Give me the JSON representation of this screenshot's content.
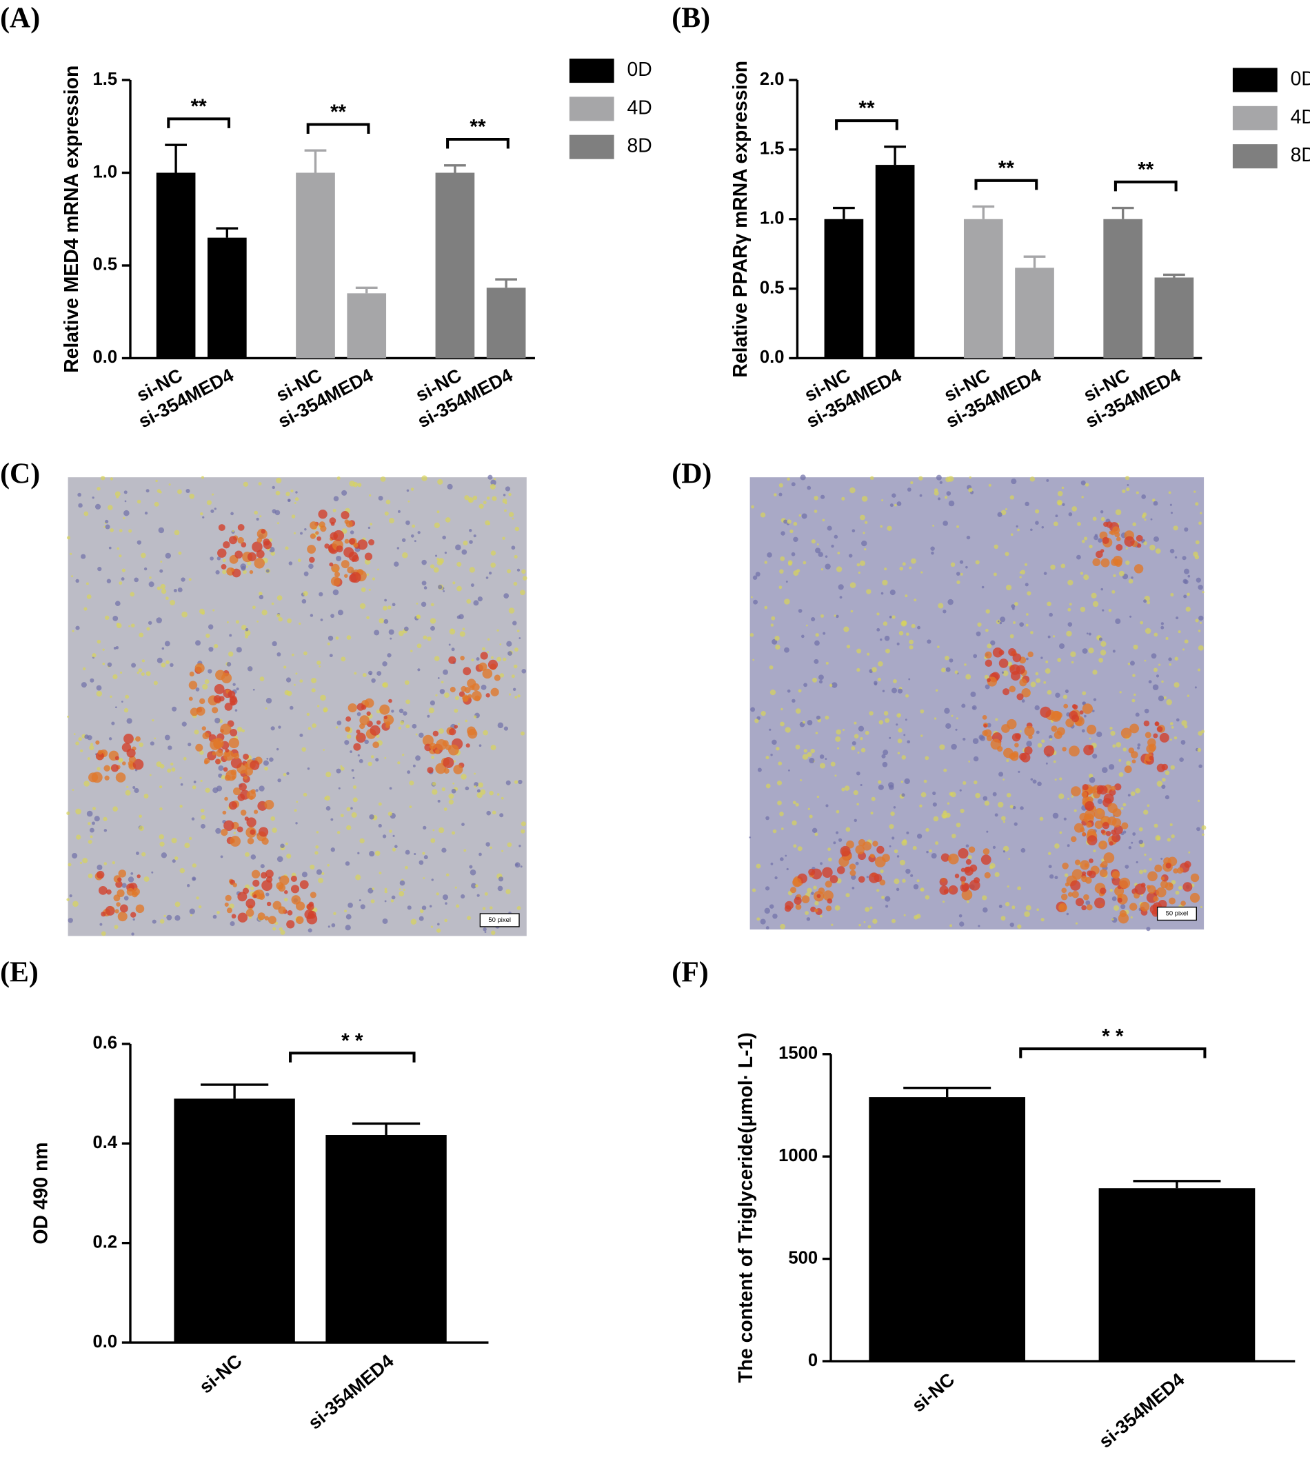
{
  "chart_data": [
    {
      "type": "grouped-bar",
      "label": "(A)",
      "y_label": "Relative MED4 mRNA expression",
      "categories": [
        "si-NC",
        "si-354MED4"
      ],
      "series": [
        {
          "name": "0D",
          "color": "#000000",
          "values": [
            1.0,
            0.65
          ],
          "errors": [
            0.15,
            0.05
          ],
          "annotation": "**"
        },
        {
          "name": "4D",
          "color": "#a6a6a8",
          "values": [
            1.0,
            0.35
          ],
          "errors": [
            0.12,
            0.03
          ],
          "annotation": "**"
        },
        {
          "name": "8D",
          "color": "#7f7f7f",
          "values": [
            1.0,
            0.38
          ],
          "errors": [
            0.04,
            0.045
          ],
          "annotation": "**"
        }
      ],
      "ylim": [
        0,
        1.5
      ],
      "yticks": [
        {
          "value": 0,
          "label": "0.0"
        },
        0.5,
        {
          "value": 1,
          "label": "1.0"
        },
        1.5
      ],
      "legend": "right"
    },
    {
      "type": "grouped-bar",
      "label": "(B)",
      "y_label": "Relative PPARγ mRNA expression",
      "categories": [
        "si-NC",
        "si-354MED4"
      ],
      "series": [
        {
          "name": "0D",
          "color": "#000000",
          "values": [
            1.0,
            1.39
          ],
          "errors": [
            0.08,
            0.13
          ],
          "annotation": "**"
        },
        {
          "name": "4D",
          "color": "#a6a6a8",
          "values": [
            1.0,
            0.65
          ],
          "errors": [
            0.09,
            0.08
          ],
          "annotation": "**"
        },
        {
          "name": "8D",
          "color": "#7f7f7f",
          "values": [
            1.0,
            0.58
          ],
          "errors": [
            0.08,
            0.02
          ],
          "annotation": "**"
        }
      ],
      "ylim": [
        0,
        2
      ],
      "yticks": [
        {
          "value": 0,
          "label": "0.0"
        },
        0.5,
        {
          "value": 1,
          "label": "1.0"
        },
        1.5,
        {
          "value": 2,
          "label": "2.0"
        }
      ],
      "legend": "right"
    },
    {
      "type": "bar",
      "label": "(E)",
      "y_label": "OD 490 nm",
      "categories": [
        "si-NC",
        "si-354MED4"
      ],
      "values": [
        0.49,
        0.417
      ],
      "errors": [
        0.028,
        0.023
      ],
      "color": "#000000",
      "annotation": "* *",
      "ylim": [
        0,
        0.6
      ],
      "yticks": [
        {
          "value": 0,
          "label": "0.0"
        },
        0.2,
        0.4,
        0.6
      ]
    },
    {
      "type": "bar",
      "label": "(F)",
      "y_label": "The content of Triglyceride(μmol· L-1)",
      "categories": [
        "si-NC",
        "si-354MED4"
      ],
      "values": [
        1290,
        845
      ],
      "errors": [
        45,
        35
      ],
      "color": "#000000",
      "annotation": "* *",
      "ylim": [
        0,
        1500
      ],
      "yticks": [
        0,
        500,
        1000,
        1500
      ]
    }
  ],
  "images": [
    {
      "label": "(C)",
      "scale_bar": "50 pixel"
    },
    {
      "label": "(D)",
      "scale_bar": "50 pixel"
    }
  ]
}
